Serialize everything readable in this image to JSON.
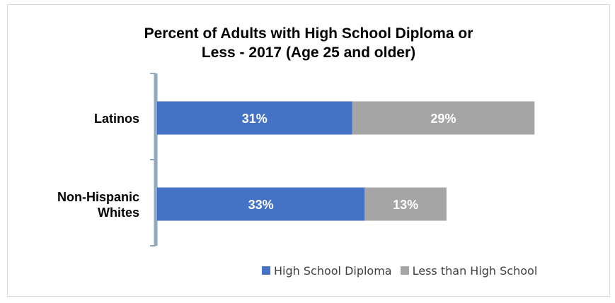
{
  "chart_data": {
    "type": "bar",
    "orientation": "horizontal",
    "stacked": true,
    "title": "Percent of Adults with High School Diploma or\nLess - 2017 (Age 25 and older)",
    "xlabel": "",
    "ylabel": "",
    "categories": [
      "Latinos",
      "Non-Hispanic\nWhites"
    ],
    "series": [
      {
        "name": "High School Diploma",
        "values": [
          31,
          33
        ],
        "labels": [
          "31%",
          "33%"
        ],
        "color": "#4472c4"
      },
      {
        "name": "Less than High School",
        "values": [
          29,
          13
        ],
        "labels": [
          "29%",
          "13%"
        ],
        "color": "#a5a5a5"
      }
    ],
    "xlim": [
      0,
      72
    ],
    "grid": false,
    "legend": "bottom-right"
  }
}
